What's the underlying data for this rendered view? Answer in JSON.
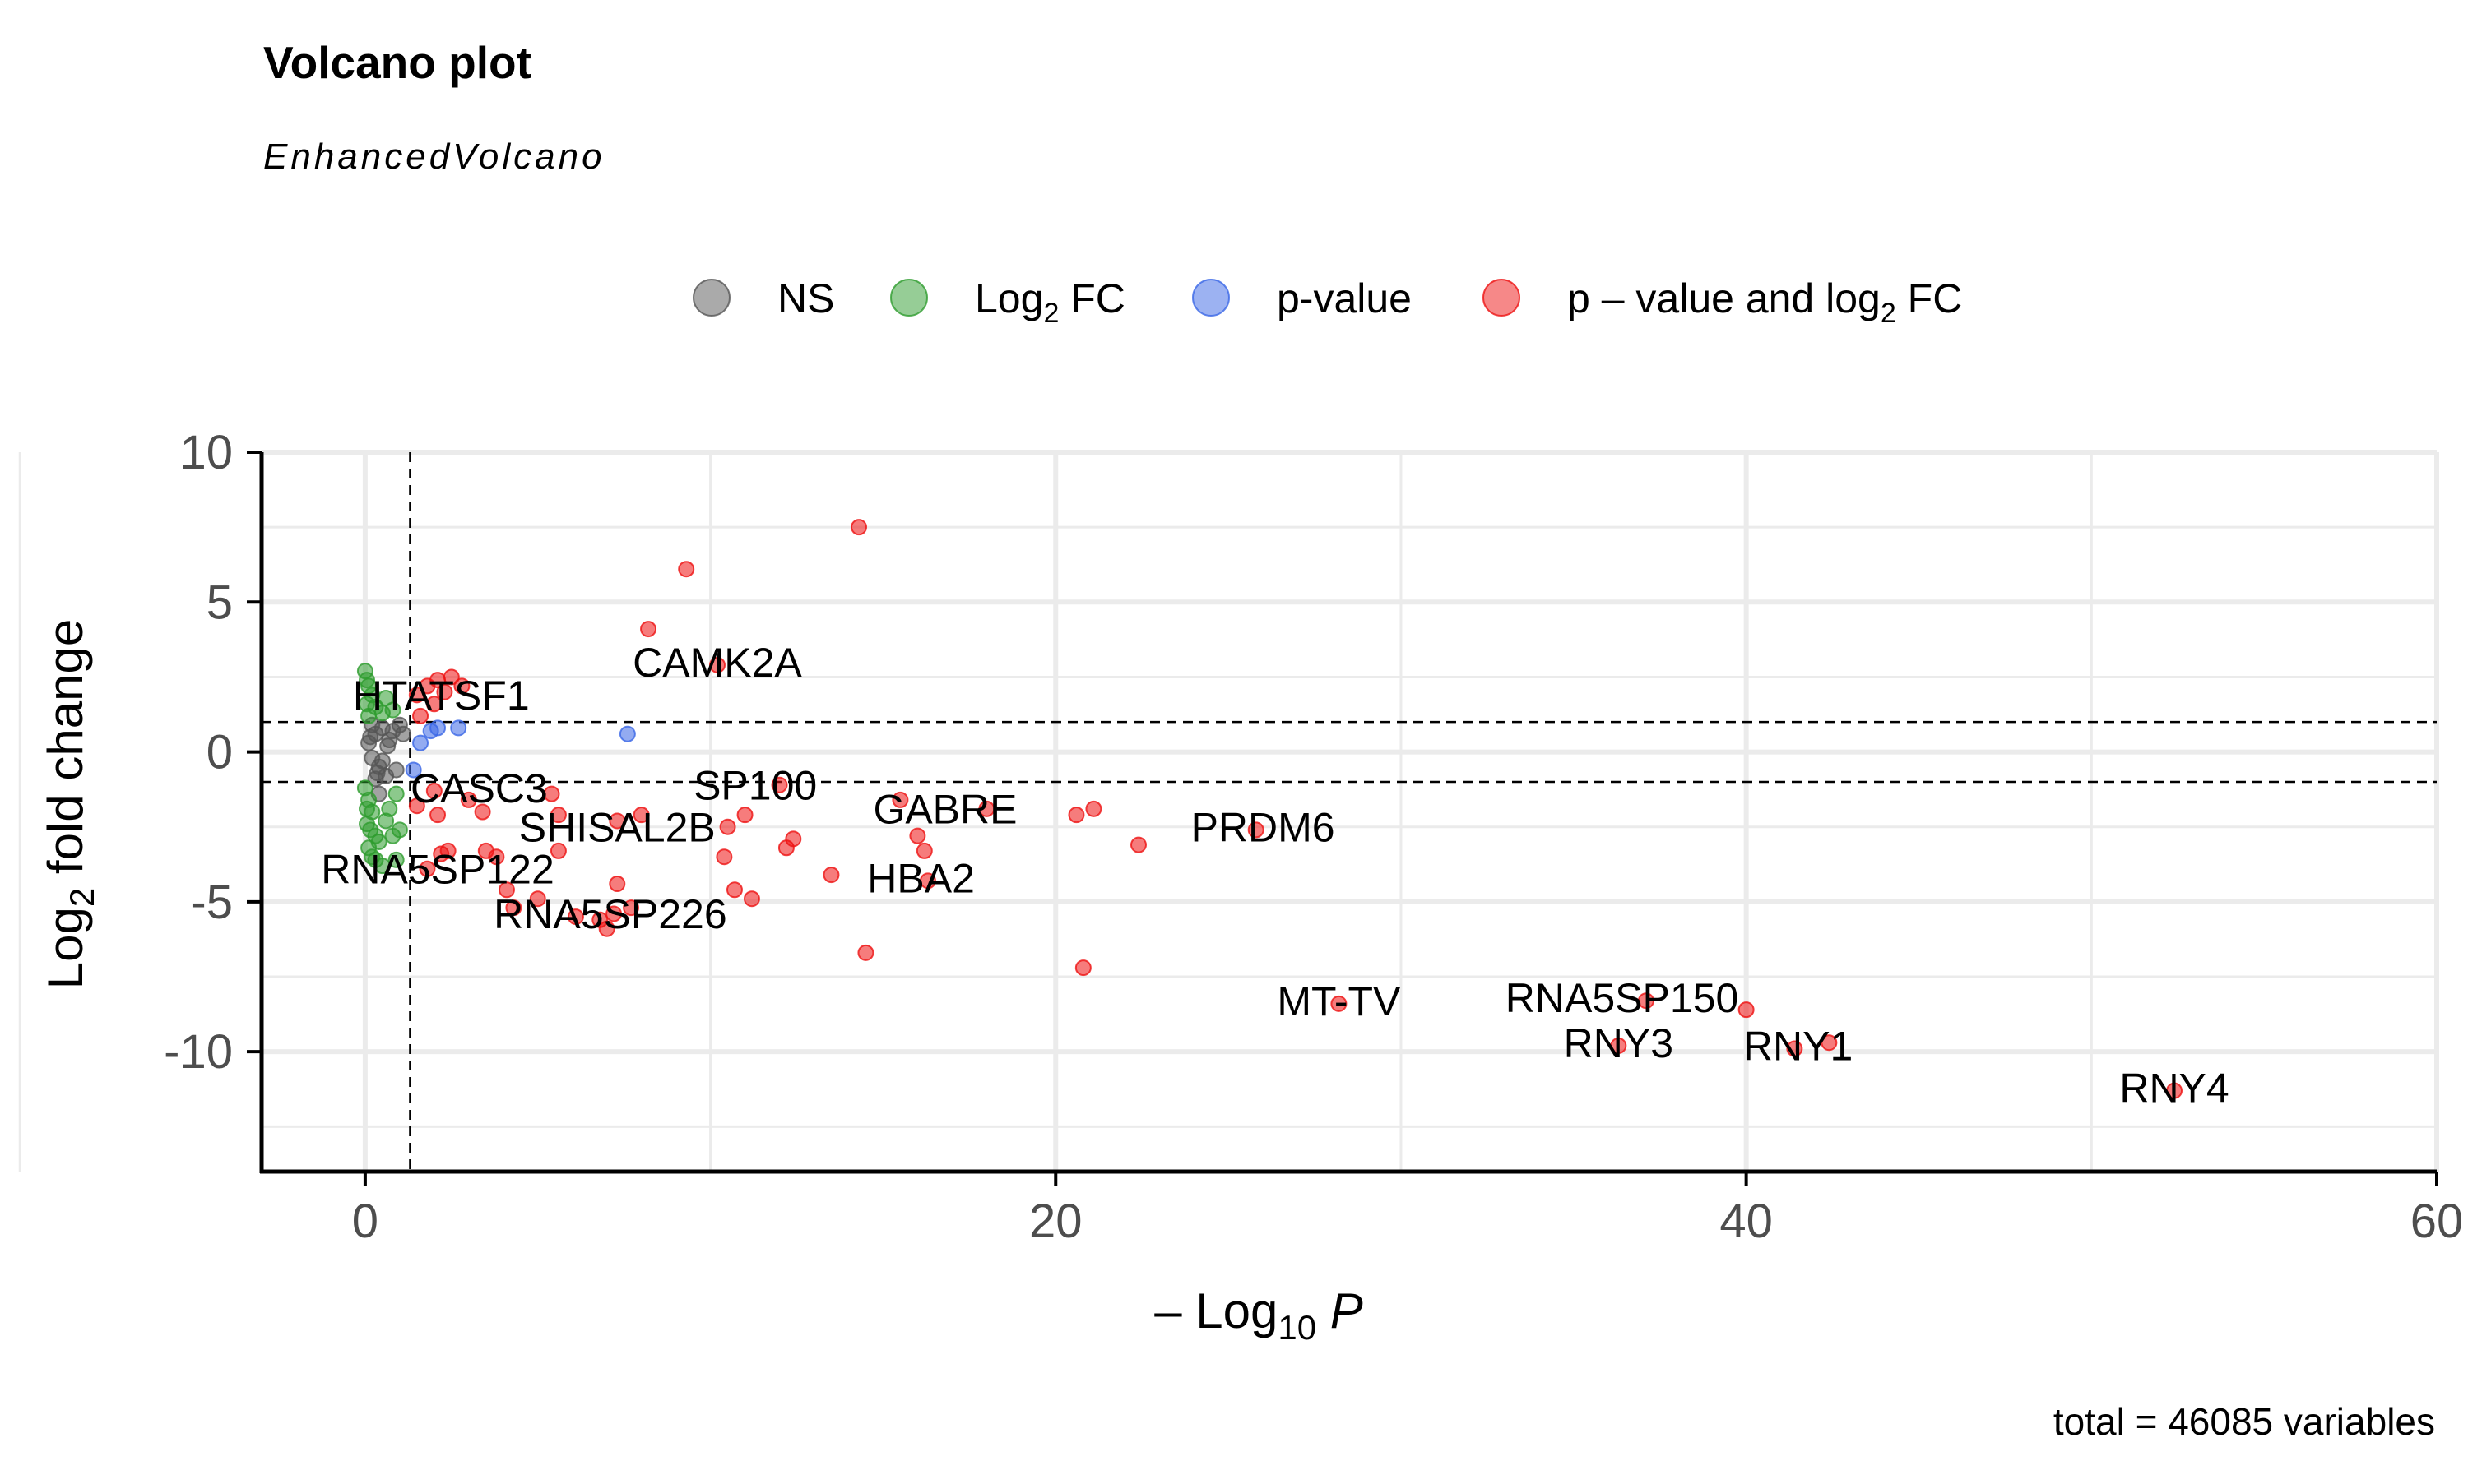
{
  "chart_data": {
    "type": "scatter",
    "title": "Volcano plot",
    "subtitle": "EnhancedVolcano",
    "caption": "total = 46085 variables",
    "xlabel": {
      "prefix": "– Log",
      "sub": "10",
      "suffix": " P"
    },
    "ylabel": {
      "prefix": "Log",
      "sub": "2",
      "suffix": " fold change"
    },
    "xlim": [
      -3,
      60
    ],
    "ylim": [
      -14,
      10
    ],
    "x_ticks": [
      0,
      20,
      40,
      60
    ],
    "y_ticks": [
      10,
      5,
      0,
      -5,
      -10
    ],
    "y_tick_labels": [
      "10",
      "5",
      "0",
      "-5",
      "-10"
    ],
    "grid": true,
    "legend_position": "top",
    "thresholds": {
      "pvalue_neglog10": 1.3,
      "log2fc": [
        -1,
        1
      ]
    },
    "colors": {
      "NS": "#555555",
      "Log2FC": "#2e9c2e",
      "pvalue": "#3a66e6",
      "both": "#ee1111"
    },
    "legend": [
      {
        "key": "NS",
        "prefix": "NS",
        "sub": "",
        "suffix": ""
      },
      {
        "key": "Log2FC",
        "prefix": "Log",
        "sub": "2",
        "suffix": " FC"
      },
      {
        "key": "pvalue",
        "prefix": "p-value",
        "sub": "",
        "suffix": ""
      },
      {
        "key": "both",
        "prefix": "p – value and log",
        "sub": "2",
        "suffix": " FC"
      }
    ],
    "series": [
      {
        "key": "NS",
        "points": [
          [
            0.1,
            0.3
          ],
          [
            0.3,
            0.6
          ],
          [
            0.5,
            0.8
          ],
          [
            0.8,
            0.7
          ],
          [
            1.0,
            0.9
          ],
          [
            0.2,
            -0.2
          ],
          [
            0.4,
            -0.5
          ],
          [
            0.6,
            -0.8
          ],
          [
            0.9,
            -0.6
          ],
          [
            0.3,
            -0.9
          ],
          [
            0.7,
            0.4
          ],
          [
            1.1,
            0.6
          ],
          [
            0.2,
            0.9
          ],
          [
            0.5,
            -0.3
          ],
          [
            0.4,
            -1.4
          ],
          [
            0.15,
            0.5
          ],
          [
            0.35,
            -0.7
          ],
          [
            0.65,
            0.2
          ]
        ]
      },
      {
        "key": "Log2FC",
        "points": [
          [
            0.0,
            2.7
          ],
          [
            0.05,
            2.4
          ],
          [
            0.1,
            2.2
          ],
          [
            0.2,
            1.9
          ],
          [
            0.05,
            1.6
          ],
          [
            0.3,
            1.5
          ],
          [
            0.5,
            1.3
          ],
          [
            0.1,
            1.2
          ],
          [
            0.6,
            1.8
          ],
          [
            0.8,
            1.4
          ],
          [
            0.0,
            -1.2
          ],
          [
            0.1,
            -1.6
          ],
          [
            0.2,
            -2.0
          ],
          [
            0.05,
            -2.4
          ],
          [
            0.3,
            -2.8
          ],
          [
            0.1,
            -3.2
          ],
          [
            0.2,
            -3.5
          ],
          [
            0.6,
            -2.3
          ],
          [
            0.8,
            -2.8
          ],
          [
            1.0,
            -2.6
          ],
          [
            0.4,
            -3.0
          ],
          [
            0.7,
            -1.9
          ],
          [
            0.9,
            -1.4
          ],
          [
            0.3,
            -3.6
          ],
          [
            0.5,
            -3.8
          ],
          [
            0.9,
            -3.6
          ],
          [
            0.05,
            -1.9
          ],
          [
            0.15,
            -2.6
          ]
        ]
      },
      {
        "key": "pvalue",
        "points": [
          [
            1.4,
            -0.6
          ],
          [
            1.9,
            0.7
          ],
          [
            2.1,
            0.8
          ],
          [
            2.7,
            0.8
          ],
          [
            7.6,
            0.6
          ],
          [
            1.6,
            0.3
          ]
        ]
      },
      {
        "key": "both",
        "points": [
          [
            1.5,
            1.9
          ],
          [
            1.8,
            2.2
          ],
          [
            2.1,
            2.4
          ],
          [
            2.3,
            2.0
          ],
          [
            2.5,
            2.5
          ],
          [
            2.8,
            2.2
          ],
          [
            1.6,
            1.2
          ],
          [
            2.0,
            1.6
          ],
          [
            1.5,
            -1.8
          ],
          [
            2.0,
            -1.3
          ],
          [
            2.1,
            -2.1
          ],
          [
            2.4,
            -3.3
          ],
          [
            1.8,
            -3.9
          ],
          [
            2.2,
            -3.4
          ],
          [
            3.0,
            -1.6
          ],
          [
            3.4,
            -2.0
          ],
          [
            3.8,
            -3.5
          ],
          [
            3.5,
            -3.3
          ],
          [
            4.1,
            -4.6
          ],
          [
            4.3,
            -5.2
          ],
          [
            5.0,
            -4.9
          ],
          [
            5.4,
            -1.4
          ],
          [
            5.6,
            -2.1
          ],
          [
            5.6,
            -3.3
          ],
          [
            6.1,
            -5.5
          ],
          [
            6.8,
            -5.6
          ],
          [
            7.0,
            -5.9
          ],
          [
            7.2,
            -5.4
          ],
          [
            7.3,
            -4.4
          ],
          [
            7.7,
            -5.2
          ],
          [
            7.3,
            -2.3
          ],
          [
            8.0,
            -2.1
          ],
          [
            8.2,
            4.1
          ],
          [
            9.3,
            6.1
          ],
          [
            10.2,
            2.9
          ],
          [
            10.4,
            -3.5
          ],
          [
            10.5,
            -2.5
          ],
          [
            10.7,
            -4.6
          ],
          [
            11.0,
            -2.1
          ],
          [
            11.2,
            -4.9
          ],
          [
            12.0,
            -1.1
          ],
          [
            12.2,
            -3.2
          ],
          [
            12.4,
            -2.9
          ],
          [
            13.5,
            -4.1
          ],
          [
            14.3,
            7.5
          ],
          [
            14.5,
            -6.7
          ],
          [
            15.5,
            -1.6
          ],
          [
            16.0,
            -2.8
          ],
          [
            16.2,
            -3.3
          ],
          [
            16.3,
            -4.3
          ],
          [
            18.0,
            -1.9
          ],
          [
            20.6,
            -2.1
          ],
          [
            21.1,
            -1.9
          ],
          [
            20.8,
            -7.2
          ],
          [
            22.4,
            -3.1
          ],
          [
            25.8,
            -2.6
          ],
          [
            28.2,
            -8.4
          ],
          [
            36.3,
            -9.8
          ],
          [
            37.1,
            -8.3
          ],
          [
            40.0,
            -8.6
          ],
          [
            41.4,
            -9.9
          ],
          [
            42.4,
            -9.7
          ],
          [
            52.4,
            -11.3
          ]
        ]
      }
    ],
    "labels": [
      {
        "text": "HTATSF1",
        "x": 2.2,
        "y": 1.8
      },
      {
        "text": "CAMK2A",
        "x": 10.2,
        "y": 2.9
      },
      {
        "text": "CASC3",
        "x": 3.3,
        "y": -1.3
      },
      {
        "text": "SP100",
        "x": 11.3,
        "y": -1.2
      },
      {
        "text": "GABRE",
        "x": 16.8,
        "y": -2.0
      },
      {
        "text": "PRDM6",
        "x": 26.0,
        "y": -2.6
      },
      {
        "text": "SHISAL2B",
        "x": 7.3,
        "y": -2.6
      },
      {
        "text": "RNA5SP122",
        "x": 2.1,
        "y": -4.0
      },
      {
        "text": "HBA2",
        "x": 16.1,
        "y": -4.3
      },
      {
        "text": "RNA5SP226",
        "x": 7.1,
        "y": -5.5
      },
      {
        "text": "MT-TV",
        "x": 28.2,
        "y": -8.4
      },
      {
        "text": "RNA5SP150",
        "x": 36.4,
        "y": -8.3
      },
      {
        "text": "RNY3",
        "x": 36.3,
        "y": -9.8
      },
      {
        "text": "RNY1",
        "x": 41.5,
        "y": -9.9
      },
      {
        "text": "RNY4",
        "x": 52.4,
        "y": -11.3
      }
    ]
  }
}
